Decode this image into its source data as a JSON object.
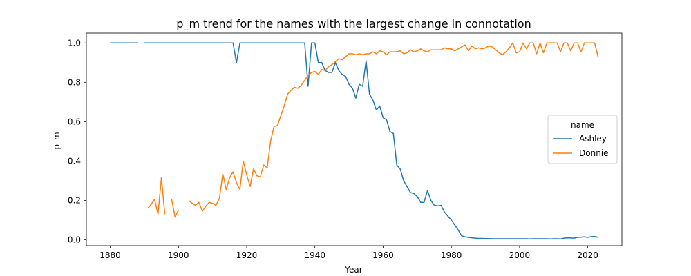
{
  "chart_data": {
    "type": "line",
    "title": "p_m trend for the names with the largest change in connotation",
    "xlabel": "Year",
    "ylabel": "p_m",
    "xlim": [
      1873,
      2030
    ],
    "ylim": [
      -0.03,
      1.05
    ],
    "xticks": [
      1880,
      1900,
      1920,
      1940,
      1960,
      1980,
      2000,
      2020
    ],
    "yticks": [
      0.0,
      0.2,
      0.4,
      0.6,
      0.8,
      1.0
    ],
    "grid": false,
    "legend": {
      "title": "name",
      "placement": "center-right"
    },
    "series": [
      {
        "name": "Ashley",
        "color": "#1f77b4",
        "points": [
          [
            1880,
            1.0
          ],
          [
            1881,
            1.0
          ],
          [
            1882,
            1.0
          ],
          [
            1883,
            1.0
          ],
          [
            1884,
            1.0
          ],
          [
            1885,
            1.0
          ],
          [
            1886,
            1.0
          ],
          [
            1887,
            1.0
          ],
          [
            1888,
            1.0
          ],
          [
            1889,
            null
          ],
          [
            1890,
            1.0
          ],
          [
            1891,
            1.0
          ],
          [
            1892,
            1.0
          ],
          [
            1893,
            1.0
          ],
          [
            1894,
            1.0
          ],
          [
            1895,
            1.0
          ],
          [
            1896,
            1.0
          ],
          [
            1897,
            1.0
          ],
          [
            1898,
            1.0
          ],
          [
            1899,
            1.0
          ],
          [
            1900,
            1.0
          ],
          [
            1901,
            1.0
          ],
          [
            1902,
            1.0
          ],
          [
            1903,
            1.0
          ],
          [
            1904,
            1.0
          ],
          [
            1905,
            1.0
          ],
          [
            1906,
            1.0
          ],
          [
            1907,
            1.0
          ],
          [
            1908,
            1.0
          ],
          [
            1909,
            1.0
          ],
          [
            1910,
            1.0
          ],
          [
            1911,
            1.0
          ],
          [
            1912,
            1.0
          ],
          [
            1913,
            1.0
          ],
          [
            1914,
            1.0
          ],
          [
            1915,
            1.0
          ],
          [
            1916,
            1.0
          ],
          [
            1917,
            0.9
          ],
          [
            1918,
            1.0
          ],
          [
            1919,
            1.0
          ],
          [
            1920,
            1.0
          ],
          [
            1921,
            1.0
          ],
          [
            1922,
            1.0
          ],
          [
            1923,
            1.0
          ],
          [
            1924,
            1.0
          ],
          [
            1925,
            1.0
          ],
          [
            1926,
            1.0
          ],
          [
            1927,
            1.0
          ],
          [
            1928,
            1.0
          ],
          [
            1929,
            1.0
          ],
          [
            1930,
            1.0
          ],
          [
            1931,
            1.0
          ],
          [
            1932,
            1.0
          ],
          [
            1933,
            1.0
          ],
          [
            1934,
            1.0
          ],
          [
            1935,
            1.0
          ],
          [
            1936,
            1.0
          ],
          [
            1937,
            1.0
          ],
          [
            1938,
            0.78
          ],
          [
            1939,
            1.0
          ],
          [
            1940,
            1.0
          ],
          [
            1941,
            0.9
          ],
          [
            1942,
            0.9
          ],
          [
            1943,
            0.86
          ],
          [
            1944,
            0.85
          ],
          [
            1945,
            0.85
          ],
          [
            1946,
            0.9
          ],
          [
            1947,
            0.86
          ],
          [
            1948,
            0.84
          ],
          [
            1949,
            0.83
          ],
          [
            1950,
            0.79
          ],
          [
            1951,
            0.77
          ],
          [
            1952,
            0.72
          ],
          [
            1953,
            0.79
          ],
          [
            1954,
            0.78
          ],
          [
            1955,
            0.91
          ],
          [
            1956,
            0.74
          ],
          [
            1957,
            0.71
          ],
          [
            1958,
            0.66
          ],
          [
            1959,
            0.68
          ],
          [
            1960,
            0.62
          ],
          [
            1961,
            0.61
          ],
          [
            1962,
            0.55
          ],
          [
            1963,
            0.54
          ],
          [
            1964,
            0.38
          ],
          [
            1965,
            0.36
          ],
          [
            1966,
            0.3
          ],
          [
            1967,
            0.27
          ],
          [
            1968,
            0.24
          ],
          [
            1969,
            0.235
          ],
          [
            1970,
            0.22
          ],
          [
            1971,
            0.19
          ],
          [
            1972,
            0.19
          ],
          [
            1973,
            0.25
          ],
          [
            1974,
            0.2
          ],
          [
            1975,
            0.175
          ],
          [
            1976,
            0.172
          ],
          [
            1977,
            0.175
          ],
          [
            1978,
            0.14
          ],
          [
            1979,
            0.12
          ],
          [
            1980,
            0.1
          ],
          [
            1981,
            0.075
          ],
          [
            1982,
            0.05
          ],
          [
            1983,
            0.02
          ],
          [
            1984,
            0.015
          ],
          [
            1985,
            0.012
          ],
          [
            1986,
            0.01
          ],
          [
            1987,
            0.008
          ],
          [
            1988,
            0.007
          ],
          [
            1989,
            0.007
          ],
          [
            1990,
            0.006
          ],
          [
            1991,
            0.006
          ],
          [
            1992,
            0.005
          ],
          [
            1993,
            0.005
          ],
          [
            1994,
            0.005
          ],
          [
            1995,
            0.005
          ],
          [
            1996,
            0.005
          ],
          [
            1997,
            0.005
          ],
          [
            1998,
            0.005
          ],
          [
            1999,
            0.005
          ],
          [
            2000,
            0.005
          ],
          [
            2001,
            0.005
          ],
          [
            2002,
            0.005
          ],
          [
            2003,
            0.004
          ],
          [
            2004,
            0.005
          ],
          [
            2005,
            0.005
          ],
          [
            2006,
            0.005
          ],
          [
            2007,
            0.005
          ],
          [
            2008,
            0.005
          ],
          [
            2009,
            0.004
          ],
          [
            2010,
            0.005
          ],
          [
            2011,
            0.005
          ],
          [
            2012,
            0.004
          ],
          [
            2013,
            0.008
          ],
          [
            2014,
            0.01
          ],
          [
            2015,
            0.009
          ],
          [
            2016,
            0.008
          ],
          [
            2017,
            0.012
          ],
          [
            2018,
            0.013
          ],
          [
            2019,
            0.015
          ],
          [
            2020,
            0.012
          ],
          [
            2021,
            0.016
          ],
          [
            2022,
            0.017
          ],
          [
            2023,
            0.012
          ]
        ]
      },
      {
        "name": "Donnie",
        "color": "#ff7f0e",
        "points": [
          [
            1891,
            0.16
          ],
          [
            1892,
            0.18
          ],
          [
            1893,
            0.205
          ],
          [
            1894,
            0.13
          ],
          [
            1895,
            0.315
          ],
          [
            1896,
            0.13
          ],
          [
            1897,
            null
          ],
          [
            1898,
            0.205
          ],
          [
            1899,
            0.115
          ],
          [
            1900,
            0.15
          ],
          [
            1901,
            null
          ],
          [
            1902,
            null
          ],
          [
            1903,
            0.2
          ],
          [
            1904,
            0.185
          ],
          [
            1905,
            0.175
          ],
          [
            1906,
            0.19
          ],
          [
            1907,
            0.145
          ],
          [
            1908,
            0.17
          ],
          [
            1909,
            0.19
          ],
          [
            1910,
            0.185
          ],
          [
            1911,
            0.175
          ],
          [
            1912,
            0.21
          ],
          [
            1913,
            0.335
          ],
          [
            1914,
            0.255
          ],
          [
            1915,
            0.315
          ],
          [
            1916,
            0.345
          ],
          [
            1917,
            0.29
          ],
          [
            1918,
            0.255
          ],
          [
            1919,
            0.4
          ],
          [
            1920,
            0.33
          ],
          [
            1921,
            0.27
          ],
          [
            1922,
            0.36
          ],
          [
            1923,
            0.325
          ],
          [
            1924,
            0.32
          ],
          [
            1925,
            0.38
          ],
          [
            1926,
            0.365
          ],
          [
            1927,
            0.5
          ],
          [
            1928,
            0.575
          ],
          [
            1929,
            0.58
          ],
          [
            1930,
            0.63
          ],
          [
            1931,
            0.68
          ],
          [
            1932,
            0.74
          ],
          [
            1933,
            0.76
          ],
          [
            1934,
            0.775
          ],
          [
            1935,
            0.77
          ],
          [
            1936,
            0.785
          ],
          [
            1937,
            0.81
          ],
          [
            1938,
            0.835
          ],
          [
            1939,
            0.85
          ],
          [
            1940,
            0.855
          ],
          [
            1941,
            0.84
          ],
          [
            1942,
            0.865
          ],
          [
            1943,
            0.86
          ],
          [
            1944,
            0.88
          ],
          [
            1945,
            0.89
          ],
          [
            1946,
            0.905
          ],
          [
            1947,
            0.92
          ],
          [
            1948,
            0.915
          ],
          [
            1949,
            0.93
          ],
          [
            1950,
            0.945
          ],
          [
            1951,
            0.945
          ],
          [
            1952,
            0.94
          ],
          [
            1953,
            0.945
          ],
          [
            1954,
            0.94
          ],
          [
            1955,
            0.945
          ],
          [
            1956,
            0.945
          ],
          [
            1957,
            0.955
          ],
          [
            1958,
            0.945
          ],
          [
            1959,
            0.96
          ],
          [
            1960,
            0.955
          ],
          [
            1961,
            0.94
          ],
          [
            1962,
            0.955
          ],
          [
            1963,
            0.955
          ],
          [
            1964,
            0.955
          ],
          [
            1965,
            0.96
          ],
          [
            1966,
            0.945
          ],
          [
            1967,
            0.95
          ],
          [
            1968,
            0.965
          ],
          [
            1969,
            0.955
          ],
          [
            1970,
            0.96
          ],
          [
            1971,
            0.97
          ],
          [
            1972,
            0.96
          ],
          [
            1973,
            0.955
          ],
          [
            1974,
            0.965
          ],
          [
            1975,
            0.965
          ],
          [
            1976,
            0.965
          ],
          [
            1977,
            0.965
          ],
          [
            1978,
            0.975
          ],
          [
            1979,
            0.97
          ],
          [
            1980,
            0.97
          ],
          [
            1981,
            0.96
          ],
          [
            1982,
            0.97
          ],
          [
            1983,
            0.98
          ],
          [
            1984,
            0.99
          ],
          [
            1985,
            0.96
          ],
          [
            1986,
            0.985
          ],
          [
            1987,
            0.97
          ],
          [
            1988,
            0.975
          ],
          [
            1989,
            0.97
          ],
          [
            1990,
            0.975
          ],
          [
            1991,
            0.985
          ],
          [
            1992,
            0.98
          ],
          [
            1993,
            0.965
          ],
          [
            1994,
            0.95
          ],
          [
            1995,
            0.94
          ],
          [
            1996,
            0.955
          ],
          [
            1997,
            0.975
          ],
          [
            1998,
            1.0
          ],
          [
            1999,
            0.95
          ],
          [
            2000,
            0.955
          ],
          [
            2001,
            1.0
          ],
          [
            2002,
            0.97
          ],
          [
            2003,
            1.0
          ],
          [
            2004,
            1.0
          ],
          [
            2005,
            0.945
          ],
          [
            2006,
            1.0
          ],
          [
            2007,
            0.95
          ],
          [
            2008,
            1.0
          ],
          [
            2009,
            1.0
          ],
          [
            2010,
            1.0
          ],
          [
            2011,
            1.0
          ],
          [
            2012,
            0.955
          ],
          [
            2013,
            1.0
          ],
          [
            2014,
            1.0
          ],
          [
            2015,
            0.96
          ],
          [
            2016,
            1.0
          ],
          [
            2017,
            1.0
          ],
          [
            2018,
            0.955
          ],
          [
            2019,
            1.0
          ],
          [
            2020,
            1.0
          ],
          [
            2021,
            1.0
          ],
          [
            2022,
            1.0
          ],
          [
            2023,
            0.93
          ]
        ]
      }
    ]
  }
}
